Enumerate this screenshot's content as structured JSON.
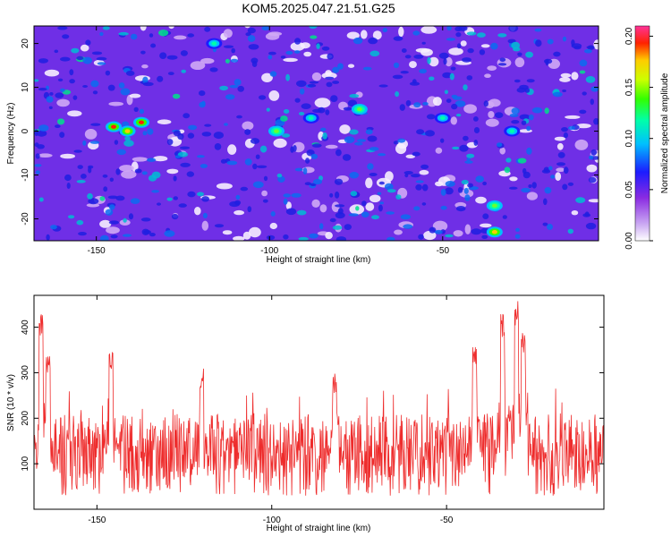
{
  "title": "KOM5.2025.047.21.51.G25",
  "colors": {
    "snr_line": "#ee2c2c",
    "axis": "#000000"
  },
  "colorbar": {
    "label": "Normalized spectral amplitude",
    "ticks": [
      "0.00",
      "0.05",
      "0.10",
      "0.15",
      "0.20"
    ],
    "range": [
      0,
      0.21
    ]
  },
  "chart_data": [
    {
      "type": "heatmap",
      "xlabel": "Height of straight line (km)",
      "ylabel": "Frequency (Hz)",
      "xlim": [
        -168,
        -5
      ],
      "ylim": [
        -25,
        24
      ],
      "xticks": [
        "-150",
        "-100",
        "-50"
      ],
      "yticks": [
        "-20",
        "-10",
        "0",
        "10",
        "20"
      ],
      "hotspots": [
        {
          "x": -145,
          "y": 1,
          "value": 0.2
        },
        {
          "x": -137,
          "y": 2,
          "value": 0.19
        },
        {
          "x": -141,
          "y": 0,
          "value": 0.16
        },
        {
          "x": -98,
          "y": 0,
          "value": 0.12
        },
        {
          "x": -74,
          "y": 5,
          "value": 0.11
        },
        {
          "x": -35,
          "y": -23,
          "value": 0.17
        },
        {
          "x": -35,
          "y": -17,
          "value": 0.12
        },
        {
          "x": -30,
          "y": 0,
          "value": 0.1
        },
        {
          "x": -116,
          "y": 20,
          "value": 0.1
        },
        {
          "x": -88,
          "y": 3,
          "value": 0.1
        },
        {
          "x": -50,
          "y": 3,
          "value": 0.08
        }
      ]
    },
    {
      "type": "line",
      "xlabel": "Height of straight line (km)",
      "ylabel": "SNR (10 * v/v)",
      "xlim": [
        -168,
        -5
      ],
      "ylim": [
        0,
        470
      ],
      "xticks": [
        "-150",
        "-100",
        "-50"
      ],
      "yticks": [
        "100",
        "200",
        "300",
        "400"
      ],
      "series": [
        {
          "x_range": [
            -168,
            -5
          ],
          "baseline": 120,
          "peaks": [
            {
              "x": -166,
              "y": 440
            },
            {
              "x": -164,
              "y": 345
            },
            {
              "x": -146,
              "y": 355
            },
            {
              "x": -120,
              "y": 310
            },
            {
              "x": -82,
              "y": 300
            },
            {
              "x": -42,
              "y": 375
            },
            {
              "x": -34,
              "y": 435
            },
            {
              "x": -30,
              "y": 465
            },
            {
              "x": -28,
              "y": 395
            }
          ]
        }
      ]
    }
  ]
}
